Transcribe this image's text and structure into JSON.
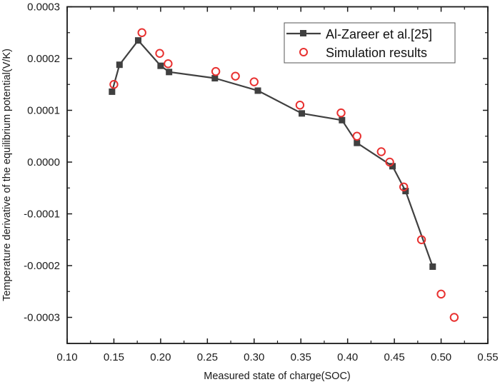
{
  "chart_data": {
    "type": "line",
    "title": "",
    "xlabel": "Measured state of charge(SOC)",
    "ylabel": "Temperature derivative of the equilibrium potential(V/K)",
    "xlim": [
      0.1,
      0.55
    ],
    "ylim": [
      -0.00035,
      0.0003
    ],
    "x_ticks": [
      0.1,
      0.15,
      0.2,
      0.25,
      0.3,
      0.35,
      0.4,
      0.45,
      0.5,
      0.55
    ],
    "x_tick_labels": [
      "0.10",
      "0.15",
      "0.20",
      "0.25",
      "0.30",
      "0.35",
      "0.40",
      "0.45",
      "0.50",
      "0.55"
    ],
    "y_ticks": [
      0.0003,
      0.0002,
      0.0001,
      0.0,
      -0.0001,
      -0.0002,
      -0.0003
    ],
    "y_tick_labels": [
      "0.0003",
      "0.0002",
      "0.0001",
      "0.0000",
      "-0.0001",
      "-0.0002",
      "-0.0003"
    ],
    "grid": false,
    "legend_position": "top-right",
    "series": [
      {
        "name": "Al-Zareer et al.[25]",
        "style": "line-square",
        "color": "#404040",
        "x": [
          0.148,
          0.156,
          0.176,
          0.2,
          0.209,
          0.258,
          0.304,
          0.351,
          0.394,
          0.41,
          0.448,
          0.462,
          0.491
        ],
        "y": [
          0.000136,
          0.000188,
          0.000235,
          0.000186,
          0.000174,
          0.000162,
          0.000138,
          9.4e-05,
          8.1e-05,
          3.7e-05,
          -8e-06,
          -5.6e-05,
          -0.000202
        ]
      },
      {
        "name": "Simulation results",
        "style": "open-circle",
        "color": "#e8302f",
        "x": [
          0.15,
          0.18,
          0.199,
          0.208,
          0.259,
          0.28,
          0.3,
          0.349,
          0.393,
          0.41,
          0.436,
          0.445,
          0.46,
          0.479,
          0.5,
          0.514
        ],
        "y": [
          0.00015,
          0.00025,
          0.00021,
          0.00019,
          0.000175,
          0.000166,
          0.000155,
          0.00011,
          9.5e-05,
          5e-05,
          2e-05,
          0.0,
          -4.8e-05,
          -0.00015,
          -0.000255,
          -0.0003
        ]
      }
    ]
  }
}
